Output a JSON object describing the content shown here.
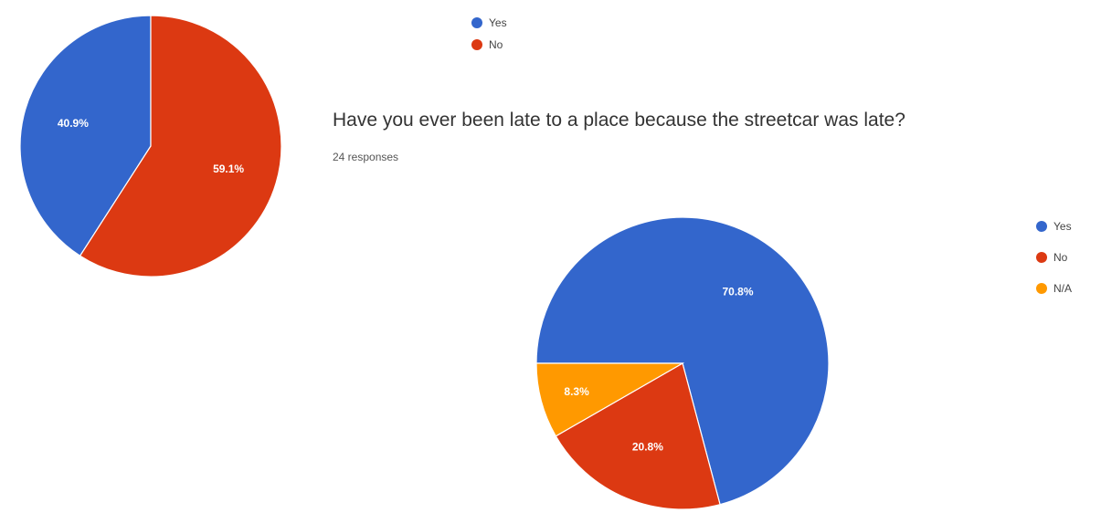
{
  "questions": [
    {
      "title": "",
      "responses": ""
    },
    {
      "title": "Have you ever been late to a place because the streetcar was late?",
      "responses": "24 responses"
    }
  ],
  "chart_data": [
    {
      "type": "pie",
      "categories": [
        "Yes",
        "No"
      ],
      "values": [
        40.9,
        59.1
      ],
      "labels": [
        "40.9%",
        "59.1%"
      ],
      "colors": [
        "#3366CC",
        "#DC3912"
      ],
      "legend": "top-right"
    },
    {
      "type": "pie",
      "title": "Have you ever been late to a place because the streetcar was late?",
      "subtitle": "24 responses",
      "categories": [
        "Yes",
        "No",
        "N/A"
      ],
      "values": [
        70.8,
        20.8,
        8.3
      ],
      "labels": [
        "70.8%",
        "20.8%",
        "8.3%"
      ],
      "colors": [
        "#3366CC",
        "#DC3912",
        "#FF9900"
      ],
      "legend": "right"
    }
  ]
}
